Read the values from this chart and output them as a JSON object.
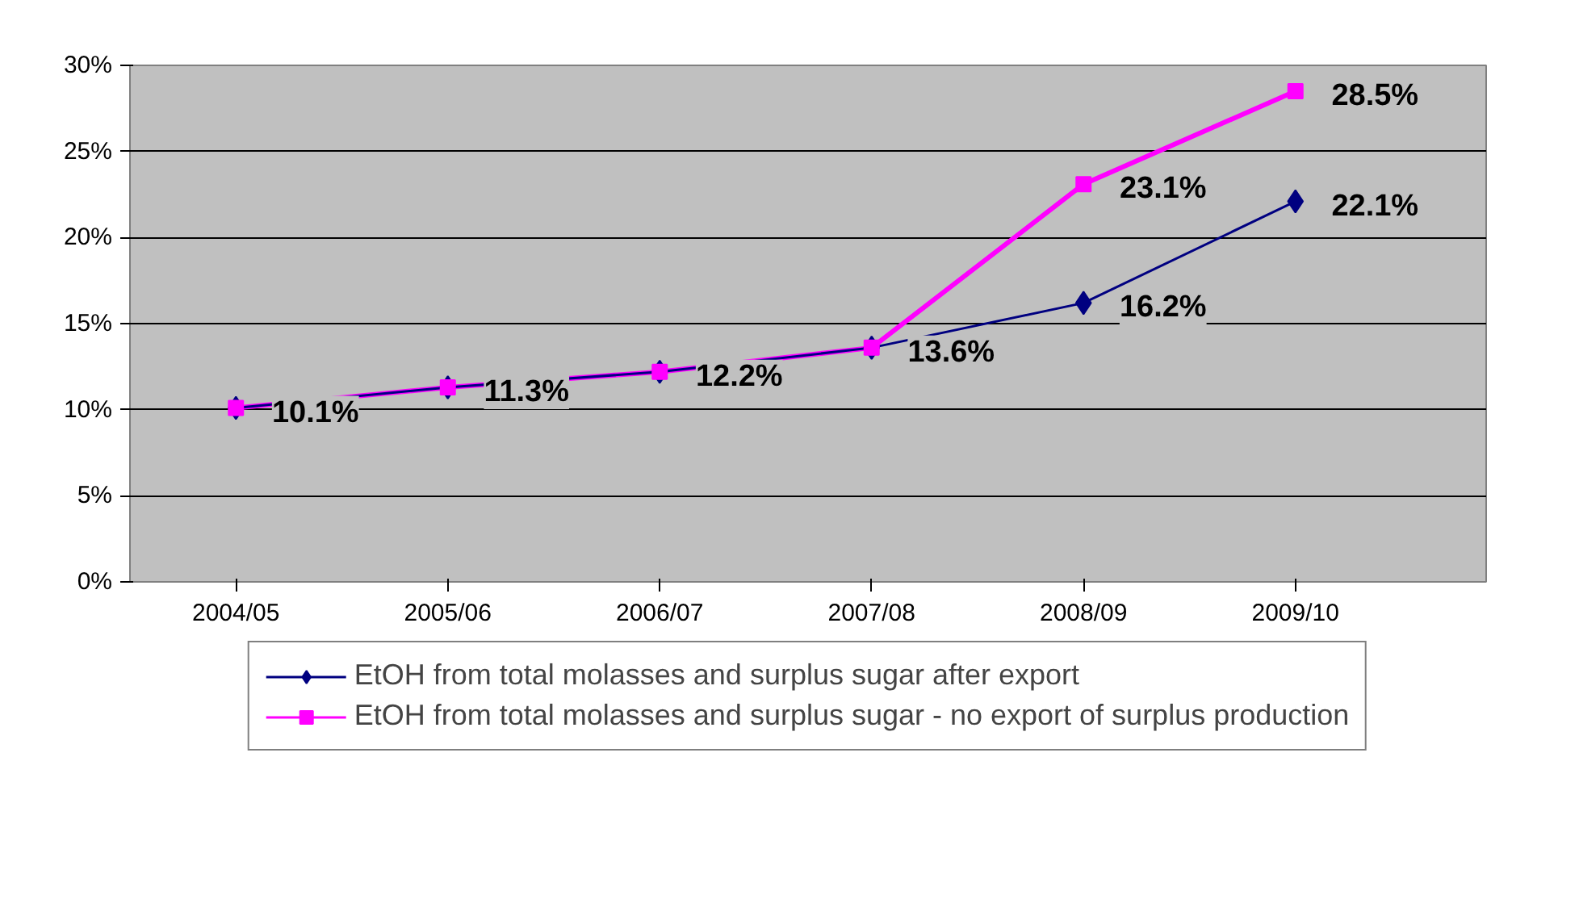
{
  "chart_data": {
    "type": "line",
    "categories": [
      "2004/05",
      "2005/06",
      "2006/07",
      "2007/08",
      "2008/09",
      "2009/10"
    ],
    "series": [
      {
        "name": "EtOH from total molasses and surplus sugar after export",
        "color": "#000080",
        "marker": "diamond",
        "values": [
          10.1,
          11.3,
          12.2,
          13.6,
          16.2,
          22.1
        ],
        "value_labels": [
          "10.1%",
          "11.3%",
          "12.2%",
          "13.6%",
          "16.2%",
          "22.1%"
        ]
      },
      {
        "name": "EtOH from total molasses and surplus sugar - no export of surplus production",
        "color": "#ff00ff",
        "marker": "square",
        "values": [
          10.1,
          11.3,
          12.2,
          13.6,
          23.1,
          28.5
        ],
        "value_labels": [
          null,
          null,
          null,
          null,
          "23.1%",
          "28.5%"
        ]
      }
    ],
    "ylim": [
      0,
      30
    ],
    "yticks": [
      {
        "value": 0,
        "label": "0%"
      },
      {
        "value": 5,
        "label": "5%"
      },
      {
        "value": 10,
        "label": "10%"
      },
      {
        "value": 15,
        "label": "15%"
      },
      {
        "value": 20,
        "label": "20%"
      },
      {
        "value": 25,
        "label": "25%"
      },
      {
        "value": 30,
        "label": "30%"
      }
    ],
    "grid": "y",
    "legend": "bottom"
  }
}
